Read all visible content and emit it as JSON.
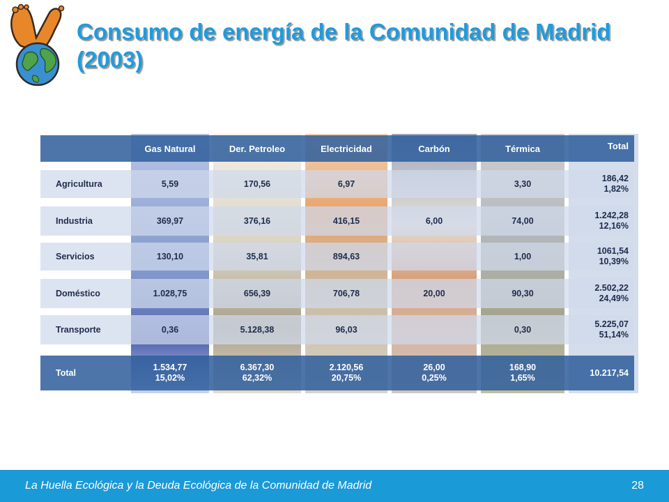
{
  "title": "Consumo de energía de la Comunidad de Madrid (2003)",
  "table": {
    "headers": [
      "",
      "Gas Natural",
      "Der. Petroleo",
      "Electricidad",
      "Carbón",
      "Térmica",
      "Total"
    ],
    "rows": [
      {
        "sector": "Agricultura",
        "values": [
          "5,59",
          "170,56",
          "6,97",
          "",
          "3,30"
        ],
        "total": [
          "186,42",
          "1,82%"
        ]
      },
      {
        "sector": "Industria",
        "values": [
          "369,97",
          "376,16",
          "416,15",
          "6,00",
          "74,00"
        ],
        "total": [
          "1.242,28",
          "12,16%"
        ]
      },
      {
        "sector": "Servicios",
        "values": [
          "130,10",
          "35,81",
          "894,63",
          "",
          "1,00"
        ],
        "total": [
          "1061,54",
          "10,39%"
        ]
      },
      {
        "sector": "Doméstico",
        "values": [
          "1.028,75",
          "656,39",
          "706,78",
          "20,00",
          "90,30"
        ],
        "total": [
          "2.502,22",
          "24,49%"
        ]
      },
      {
        "sector": "Transporte",
        "values": [
          "0,36",
          "5.128,38",
          "96,03",
          "",
          "0,30"
        ],
        "total": [
          "5.225,07",
          "51,14%"
        ]
      }
    ],
    "footer": {
      "label": "Total",
      "values": [
        [
          "1.534,77",
          "15,02%"
        ],
        [
          "6.367,30",
          "62,32%"
        ],
        [
          "2.120,56",
          "20,75%"
        ],
        [
          "26,00",
          "0,25%"
        ],
        [
          "168,90",
          "1,65%"
        ]
      ],
      "grand_total": "10.217,54"
    }
  },
  "footer_bar": {
    "text": "La Huella Ecológica y la Deuda Ecológica de la Comunidad de Madrid",
    "page": "28"
  },
  "colors": {
    "title": "#1f9bdc",
    "footer_bar": "#1b9ad8",
    "header_band": "#305e9c",
    "row_band": "#d0daec"
  },
  "icons": [
    "footprint-globe-logo"
  ]
}
